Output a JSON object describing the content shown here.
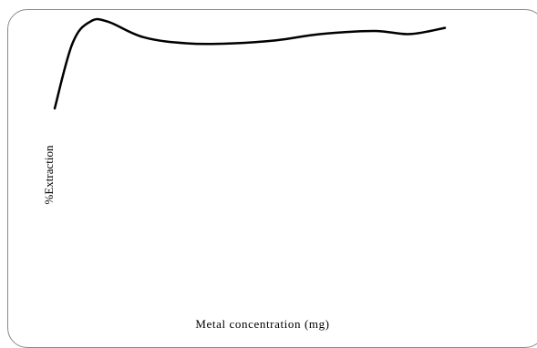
{
  "chart_data": {
    "type": "line",
    "title": "",
    "xlabel": "Metal concentration (mg)",
    "ylabel": "%Extraction",
    "grid": false,
    "legend": "none",
    "line_color": "#000000",
    "series": [
      {
        "x": [
          0,
          2,
          4,
          6,
          10,
          15,
          20,
          25,
          30,
          36,
          40,
          44
        ],
        "y": [
          65,
          86,
          93,
          93,
          88,
          86,
          86,
          87,
          89,
          90,
          89,
          91
        ]
      }
    ],
    "xlim": [
      0,
      44
    ],
    "ylim": [
      0,
      100
    ]
  }
}
